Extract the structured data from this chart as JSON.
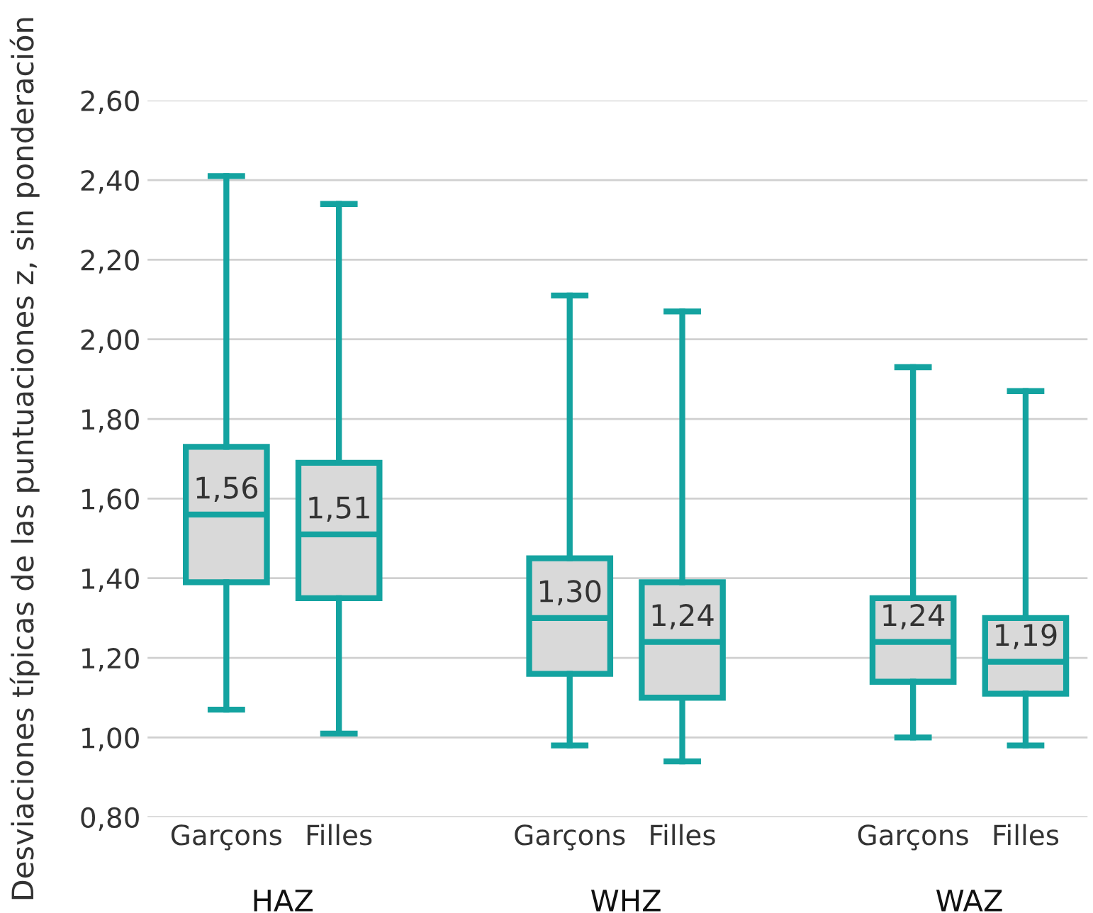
{
  "chart_data": {
    "type": "box",
    "ylabel": "Desviaciones típicas de las puntuaciones z, sin ponderación",
    "categories": [
      "Garçons",
      "Filles",
      "Garçons",
      "Filles",
      "Garçons",
      "Filles"
    ],
    "annotations": [
      "HAZ",
      "WHZ",
      "WAZ"
    ],
    "boxes": [
      {
        "low": 1.07,
        "q1": 1.39,
        "median": 1.56,
        "q3": 1.73,
        "high": 2.41
      },
      {
        "low": 1.01,
        "q1": 1.35,
        "median": 1.51,
        "q3": 1.69,
        "high": 2.34
      },
      {
        "low": 0.98,
        "q1": 1.16,
        "median": 1.3,
        "q3": 1.45,
        "high": 2.11
      },
      {
        "low": 0.94,
        "q1": 1.1,
        "median": 1.24,
        "q3": 1.39,
        "high": 2.07
      },
      {
        "low": 1.0,
        "q1": 1.14,
        "median": 1.24,
        "q3": 1.35,
        "high": 1.93
      },
      {
        "low": 0.98,
        "q1": 1.11,
        "median": 1.19,
        "q3": 1.3,
        "high": 1.87
      }
    ],
    "value_labels": [
      "1,56",
      "1,51",
      "1,30",
      "1,24",
      "1,24",
      "1,19"
    ],
    "color": "#14a3a0",
    "ylim": [
      0.8,
      2.6
    ],
    "yticks": [
      {
        "value": 0.8,
        "label": "0,80"
      },
      {
        "value": 1.0,
        "label": "1,00"
      },
      {
        "value": 1.2,
        "label": "1,20"
      },
      {
        "value": 1.4,
        "label": "1,40"
      },
      {
        "value": 1.6,
        "label": "1,60"
      },
      {
        "value": 1.8,
        "label": "1,80"
      },
      {
        "value": 2.0,
        "label": "2,00"
      },
      {
        "value": 2.2,
        "label": "2,20"
      },
      {
        "value": 2.4,
        "label": "2,40"
      },
      {
        "value": 2.6,
        "label": "2,60"
      }
    ],
    "grid": "y",
    "legend": false
  }
}
